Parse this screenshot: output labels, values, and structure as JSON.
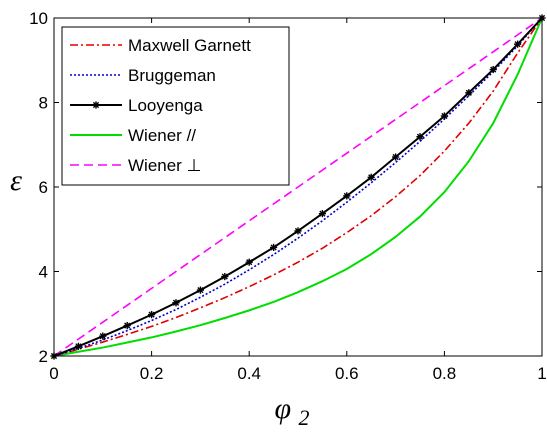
{
  "chart_data": {
    "type": "line",
    "xlabel": "φ",
    "xlabel_sub": "2",
    "ylabel": "ε",
    "xlim": [
      0,
      1
    ],
    "ylim": [
      2,
      10
    ],
    "xticks": [
      0,
      0.2,
      0.4,
      0.6,
      0.8,
      1
    ],
    "xtick_labels": [
      "0",
      "0.2",
      "0.4",
      "0.6",
      "0.8",
      "1"
    ],
    "yticks": [
      2,
      4,
      6,
      8,
      10
    ],
    "ytick_labels": [
      "2",
      "4",
      "6",
      "8",
      "10"
    ],
    "grid": false,
    "legend_position": "top-left",
    "x": [
      0,
      0.05,
      0.1,
      0.15,
      0.2,
      0.25,
      0.3,
      0.35,
      0.4,
      0.45,
      0.5,
      0.55,
      0.6,
      0.65,
      0.7,
      0.75,
      0.8,
      0.85,
      0.9,
      0.95,
      1
    ],
    "series": [
      {
        "name": "Maxwell Garnett",
        "color": "#e00000",
        "dash": "dashdot",
        "marker": "none",
        "values": [
          2.0,
          2.16,
          2.33,
          2.51,
          2.7,
          2.91,
          3.14,
          3.38,
          3.64,
          3.92,
          4.22,
          4.55,
          4.92,
          5.32,
          5.77,
          6.27,
          6.85,
          7.51,
          8.27,
          9.17,
          10.0
        ]
      },
      {
        "name": "Bruggeman",
        "color": "#0000cc",
        "dash": "dotted",
        "marker": "none",
        "values": [
          2.0,
          2.18,
          2.38,
          2.6,
          2.84,
          3.1,
          3.39,
          3.7,
          4.04,
          4.4,
          4.79,
          5.2,
          5.64,
          6.1,
          6.58,
          7.08,
          7.61,
          8.16,
          8.73,
          9.34,
          10.0
        ]
      },
      {
        "name": "Looyenga",
        "color": "#000000",
        "dash": "solid",
        "marker": "star",
        "values": [
          2.0,
          2.23,
          2.47,
          2.72,
          2.98,
          3.26,
          3.56,
          3.88,
          4.22,
          4.57,
          4.96,
          5.37,
          5.79,
          6.23,
          6.71,
          7.19,
          7.68,
          8.23,
          8.78,
          9.38,
          10.0
        ]
      },
      {
        "name": "Wiener //",
        "color": "#00dd00",
        "dash": "solid",
        "marker": "none",
        "values": [
          2.0,
          2.1,
          2.2,
          2.32,
          2.44,
          2.58,
          2.73,
          2.9,
          3.08,
          3.28,
          3.51,
          3.77,
          4.06,
          4.41,
          4.82,
          5.3,
          5.88,
          6.61,
          7.51,
          8.66,
          10.0
        ]
      },
      {
        "name": "Wiener ⊥",
        "color": "#ff00ff",
        "dash": "dashed",
        "marker": "none",
        "values": [
          2.0,
          2.4,
          2.8,
          3.2,
          3.6,
          4.0,
          4.4,
          4.8,
          5.2,
          5.6,
          6.0,
          6.4,
          6.8,
          7.2,
          7.6,
          8.0,
          8.4,
          8.8,
          9.2,
          9.6,
          10.0
        ]
      }
    ]
  }
}
